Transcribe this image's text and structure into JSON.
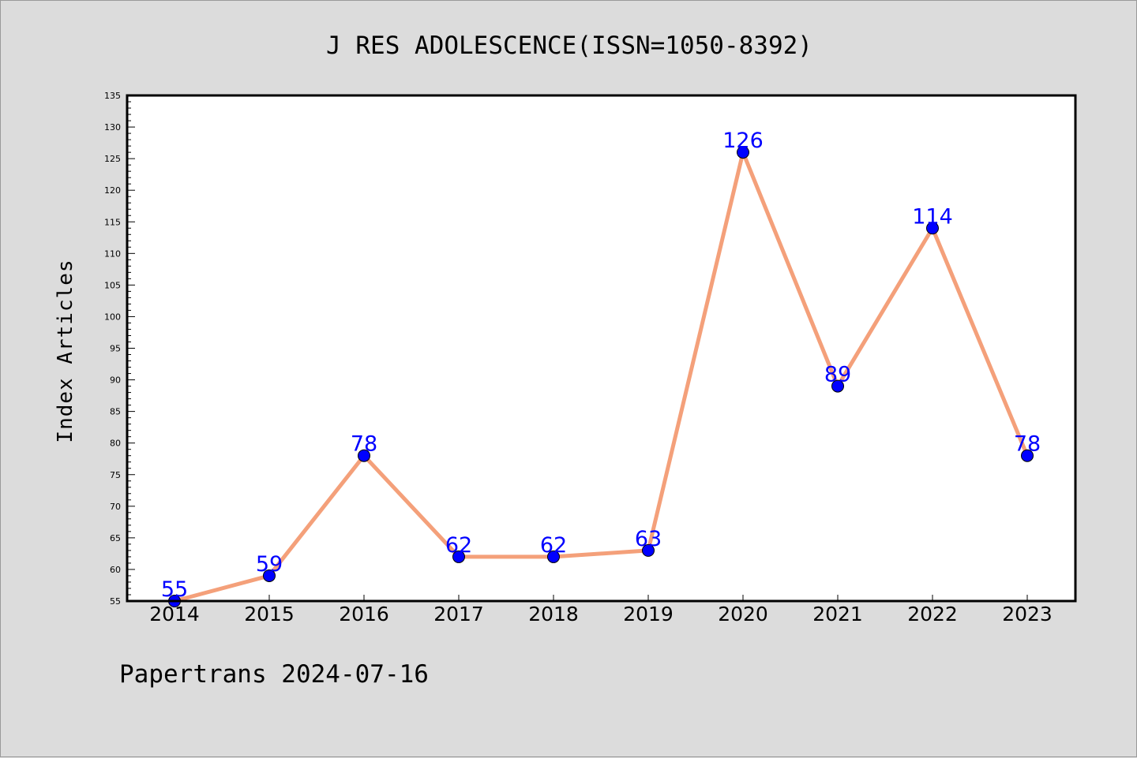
{
  "chart_data": {
    "type": "line",
    "title": "J RES ADOLESCENCE(ISSN=1050-8392)",
    "xlabel": "",
    "ylabel": "Index Articles",
    "categories": [
      "2014",
      "2015",
      "2016",
      "2017",
      "2018",
      "2019",
      "2020",
      "2021",
      "2022",
      "2023"
    ],
    "series": [
      {
        "values": [
          55,
          59,
          78,
          62,
          62,
          63,
          126,
          89,
          114,
          78
        ],
        "line_color": "#f4a07a",
        "marker_color": "#0000ff",
        "label_color": "#0000ff"
      }
    ],
    "ylim": [
      55,
      135
    ],
    "y_major_step": 5,
    "y_minor_step": 1,
    "yticks": [
      "55",
      "60",
      "65",
      "70",
      "75",
      "80",
      "85",
      "90",
      "95",
      "100",
      "105",
      "110",
      "115",
      "120",
      "125",
      "130",
      "135"
    ],
    "grid": false,
    "legend": "none",
    "data_labels": true
  },
  "footer": {
    "text": "Papertrans 2024-07-16"
  },
  "colors": {
    "background": "#dcdcdc",
    "plot_background": "#ffffff",
    "axis": "#000000"
  }
}
